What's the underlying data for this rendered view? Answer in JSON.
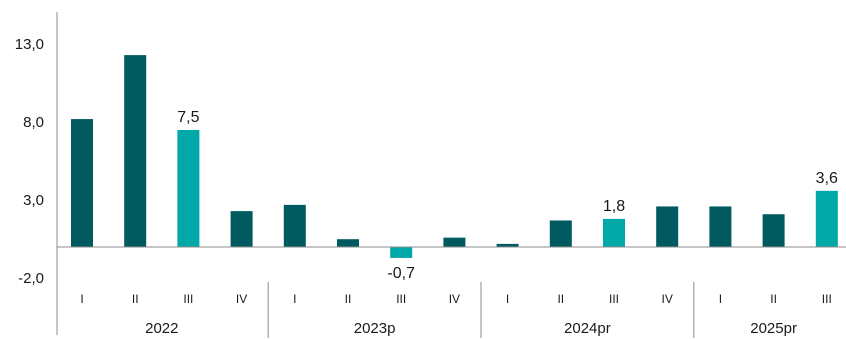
{
  "chart_data": {
    "type": "bar",
    "categories": [
      "I",
      "II",
      "III",
      "IV",
      "I",
      "II",
      "III",
      "IV",
      "I",
      "II",
      "III",
      "IV",
      "I",
      "II",
      "III"
    ],
    "groups": [
      {
        "label": "2022",
        "count": 4
      },
      {
        "label": "2023p",
        "count": 4
      },
      {
        "label": "2024pr",
        "count": 4
      },
      {
        "label": "2025pr",
        "count": 3
      }
    ],
    "values": [
      8.2,
      12.3,
      7.5,
      2.3,
      2.7,
      0.5,
      -0.7,
      0.6,
      0.2,
      1.7,
      1.8,
      2.6,
      2.6,
      2.1,
      3.6
    ],
    "highlighted": [
      false,
      false,
      true,
      false,
      false,
      false,
      true,
      false,
      false,
      false,
      true,
      false,
      false,
      false,
      true
    ],
    "data_labels": [
      "",
      "",
      "7,5",
      "",
      "",
      "",
      "-0,7",
      "",
      "",
      "",
      "1,8",
      "",
      "",
      "",
      "3,6"
    ],
    "y_ticks": [
      {
        "value": 13.0,
        "label": "13,0"
      },
      {
        "value": 8.0,
        "label": "8,0"
      },
      {
        "value": 3.0,
        "label": "3,0"
      },
      {
        "value": -2.0,
        "label": "-2,0"
      }
    ],
    "ylim": [
      -2,
      15
    ],
    "grid": false,
    "colors": {
      "default": "#005a60",
      "highlight": "#00a8a8",
      "axis": "#8c8c8c"
    }
  }
}
